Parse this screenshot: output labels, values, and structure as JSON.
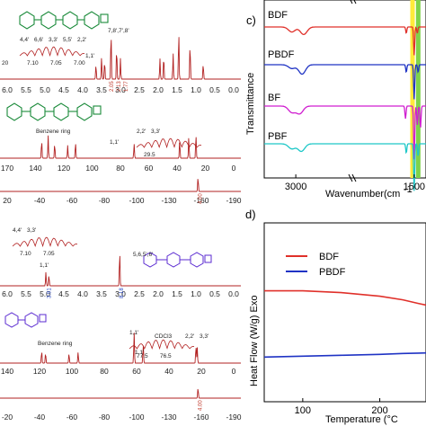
{
  "figure": {
    "nmr_panels": [
      {
        "id": "h1-bdf",
        "type": "1H",
        "ticks": [
          "6.0",
          "5.5",
          "5.0",
          "4.5",
          "4.0",
          "3.5",
          "3.0",
          "2.5",
          "2.0",
          "1.5",
          "1.0",
          "0.5",
          "0.0"
        ],
        "annotations": [
          "7,8',7',8'",
          "1,1'"
        ],
        "integrals": [
          "2.05",
          "2.13",
          "1.77"
        ],
        "inset": {
          "labels": [
            "4,4'",
            "6,6'",
            "3,3'",
            "5,5'",
            "2,2'"
          ],
          "ticks": [
            "7.10",
            "7.05",
            "7.00"
          ],
          "left_tick": "20"
        }
      },
      {
        "id": "c13-bdf",
        "type": "13C",
        "ticks": [
          "170",
          "140",
          "120",
          "100",
          "80",
          "60",
          "40",
          "20",
          "0"
        ],
        "annotations": [
          "Benzene ring",
          "1,1'"
        ],
        "inset": {
          "labels": [
            "2,2'",
            "3,3'"
          ],
          "ticks": [
            "29.5"
          ]
        }
      },
      {
        "id": "f19-bdf",
        "type": "19F",
        "ticks": [
          "20",
          "-40",
          "-60",
          "-80",
          "-100",
          "-130",
          "-160",
          "-190"
        ],
        "integrals": [
          "4.00"
        ]
      },
      {
        "id": "h1-pbdf",
        "type": "1H",
        "ticks": [
          "6.0",
          "5.5",
          "5.0",
          "4.5",
          "4.0",
          "3.5",
          "3.0",
          "2.5",
          "2.0",
          "1.5",
          "1.0",
          "0.5",
          "0.0"
        ],
        "annotations": [
          "1,1'",
          "5,6,5',6'"
        ],
        "integrals": [
          "3.91",
          "8.18"
        ],
        "inset": {
          "labels": [
            "4,4'",
            "3,3'"
          ],
          "ticks": [
            "7.10",
            "7.05"
          ]
        }
      },
      {
        "id": "c13-pbdf",
        "type": "13C",
        "ticks": [
          "140",
          "120",
          "100",
          "80",
          "60",
          "40",
          "20",
          "0"
        ],
        "annotations": [
          "Benzene ring",
          "CDCl3",
          "1,1'"
        ],
        "inset": {
          "labels": [
            "1,1'"
          ],
          "ticks": [
            "77.5",
            "76.5"
          ]
        },
        "inset2": {
          "labels": [
            "2,2'",
            "3,3'"
          ]
        }
      },
      {
        "id": "f19-pbdf",
        "type": "19F",
        "ticks": [
          "-20",
          "-40",
          "-60",
          "-80",
          "-100",
          "-130",
          "-160",
          "-190"
        ],
        "integrals": [
          "4.00"
        ]
      }
    ],
    "panel_c": {
      "label": "c)",
      "xlabel": "Wavenumber(cm",
      "ylabel": "Transmittance",
      "xticks": [
        "3000",
        "1500"
      ],
      "series_labels": [
        "BDF",
        "PBDF",
        "BF",
        "PBF"
      ]
    },
    "panel_d": {
      "label": "d)",
      "xlabel": "Temperature (°C",
      "ylabel": "Heat Flow (W/g) Exo",
      "xticks": [
        "100",
        "200"
      ],
      "legend": [
        "BDF",
        "PBDF"
      ]
    }
  },
  "colors": {
    "nmr": "#b22222",
    "bdf": "#e0302a",
    "pbdf": "#1f33c4",
    "bf": "#d01fd0",
    "pbf": "#1fc8c8",
    "highlight_yellow": "#ffeb3b",
    "highlight_green": "#7fd34a"
  },
  "chart_data": [
    {
      "type": "line",
      "subtype": "nmr-1H",
      "panel": "h1-bdf",
      "x": [
        6.0,
        5.5,
        5.0,
        4.5,
        4.0,
        3.5,
        3.0,
        2.5,
        2.0,
        1.5,
        1.0,
        0.5,
        0.0
      ],
      "series": [
        {
          "peaks": [
            {
              "x": 3.75,
              "h": 0.28
            },
            {
              "x": 3.6,
              "h": 0.42
            },
            {
              "x": 3.52,
              "h": 0.35
            },
            {
              "x": 3.35,
              "h": 0.95
            },
            {
              "x": 3.2,
              "h": 0.6
            },
            {
              "x": 3.1,
              "h": 0.4
            },
            {
              "x": 2.05,
              "h": 0.4
            },
            {
              "x": 1.95,
              "h": 0.45
            },
            {
              "x": 1.7,
              "h": 0.5
            },
            {
              "x": 1.55,
              "h": 0.9
            },
            {
              "x": 1.25,
              "h": 0.7
            },
            {
              "x": 0.9,
              "h": 0.3
            }
          ]
        }
      ],
      "xlim": [
        6.3,
        -0.1
      ]
    },
    {
      "type": "line",
      "subtype": "nmr-13C",
      "panel": "c13-bdf",
      "x": [
        170,
        140,
        120,
        100,
        80,
        60,
        40,
        20,
        0
      ],
      "series": [
        {
          "peaks": [
            {
              "x": 148,
              "h": 0.55
            },
            {
              "x": 143,
              "h": 0.7
            },
            {
              "x": 138,
              "h": 0.45
            },
            {
              "x": 128,
              "h": 0.4
            },
            {
              "x": 122,
              "h": 0.5
            },
            {
              "x": 77,
              "h": 0.45
            },
            {
              "x": 42,
              "h": 0.55
            },
            {
              "x": 35,
              "h": 0.65
            },
            {
              "x": 29.5,
              "h": 0.75
            }
          ]
        }
      ],
      "xlim": [
        180,
        -5
      ]
    },
    {
      "type": "line",
      "subtype": "nmr-19F",
      "panel": "f19-bdf",
      "x": [
        20,
        -40,
        -60,
        -80,
        -100,
        -130,
        -160,
        -190
      ],
      "series": [
        {
          "peaks": [
            {
              "x": -160,
              "h": 0.9
            }
          ]
        }
      ],
      "xlim": [
        25,
        -200
      ]
    },
    {
      "type": "line",
      "subtype": "nmr-1H",
      "panel": "h1-pbdf",
      "x": [
        6.0,
        5.5,
        5.0,
        4.5,
        4.0,
        3.5,
        3.0,
        2.5,
        2.0,
        1.5,
        1.0,
        0.5,
        0.0
      ],
      "series": [
        {
          "peaks": [
            {
              "x": 5.08,
              "h": 0.38
            },
            {
              "x": 5.0,
              "h": 0.3
            },
            {
              "x": 3.12,
              "h": 0.95
            }
          ]
        }
      ],
      "xlim": [
        6.3,
        -0.1
      ]
    },
    {
      "type": "line",
      "subtype": "nmr-13C",
      "panel": "c13-pbdf",
      "x": [
        140,
        120,
        100,
        80,
        60,
        40,
        20,
        0
      ],
      "series": [
        {
          "peaks": [
            {
              "x": 148,
              "h": 0.35
            },
            {
              "x": 145,
              "h": 0.3
            },
            {
              "x": 127,
              "h": 0.28
            },
            {
              "x": 120,
              "h": 0.32
            },
            {
              "x": 77,
              "h": 0.9
            },
            {
              "x": 70,
              "h": 0.55
            },
            {
              "x": 29.5,
              "h": 0.5
            },
            {
              "x": 28.5,
              "h": 0.45
            }
          ]
        }
      ],
      "xlim": [
        180,
        -5
      ]
    },
    {
      "type": "line",
      "subtype": "nmr-19F",
      "panel": "f19-pbdf",
      "x": [
        -20,
        -40,
        -60,
        -80,
        -100,
        -130,
        -160,
        -190
      ],
      "series": [
        {
          "peaks": [
            {
              "x": -160,
              "h": 0.9
            }
          ]
        }
      ],
      "xlim": [
        25,
        -200
      ]
    },
    {
      "type": "line",
      "panel": "c",
      "title": "",
      "xlabel": "Wavenumber(cm",
      "ylabel": "Transmittance",
      "xlim": [
        3400,
        1350
      ],
      "x_unit": "cm-1",
      "series": [
        {
          "name": "BDF",
          "offset": 3,
          "features": [
            {
              "x": 3050,
              "d": 0.08
            },
            {
              "x": 2900,
              "d": 0.12
            },
            {
              "x": 1600,
              "d": 0.1
            },
            {
              "x": 1500,
              "d": 0.45
            },
            {
              "x": 1460,
              "d": 0.1
            }
          ]
        },
        {
          "name": "PBDF",
          "offset": 2,
          "features": [
            {
              "x": 3050,
              "d": 0.06
            },
            {
              "x": 2920,
              "d": 0.15
            },
            {
              "x": 1600,
              "d": 0.12
            },
            {
              "x": 1500,
              "d": 0.55
            },
            {
              "x": 1450,
              "d": 0.12
            }
          ]
        },
        {
          "name": "BF",
          "offset": 1,
          "features": [
            {
              "x": 3050,
              "d": 0.1
            },
            {
              "x": 2950,
              "d": 0.12
            },
            {
              "x": 1610,
              "d": 0.2
            },
            {
              "x": 1500,
              "d": 0.85
            },
            {
              "x": 1460,
              "d": 0.3
            },
            {
              "x": 1420,
              "d": 0.35
            }
          ]
        },
        {
          "name": "PBF",
          "offset": 0,
          "features": [
            {
              "x": 3050,
              "d": 0.08
            },
            {
              "x": 2930,
              "d": 0.12
            },
            {
              "x": 1600,
              "d": 0.15
            },
            {
              "x": 1500,
              "d": 0.75
            },
            {
              "x": 1450,
              "d": 0.2
            }
          ]
        }
      ],
      "highlight_bands": [
        1515,
        1500
      ]
    },
    {
      "type": "line",
      "panel": "d",
      "title": "",
      "xlabel": "Temperature (°C",
      "ylabel": "Heat Flow (W/g) Exo",
      "xlim": [
        50,
        260
      ],
      "series": [
        {
          "name": "BDF",
          "x": [
            50,
            100,
            150,
            200,
            230,
            250,
            260
          ],
          "y": [
            0.62,
            0.62,
            0.61,
            0.59,
            0.57,
            0.55,
            0.54
          ]
        },
        {
          "name": "PBDF",
          "x": [
            50,
            100,
            150,
            200,
            230,
            250,
            260
          ],
          "y": [
            0.25,
            0.255,
            0.26,
            0.265,
            0.27,
            0.272,
            0.273
          ]
        }
      ]
    }
  ]
}
